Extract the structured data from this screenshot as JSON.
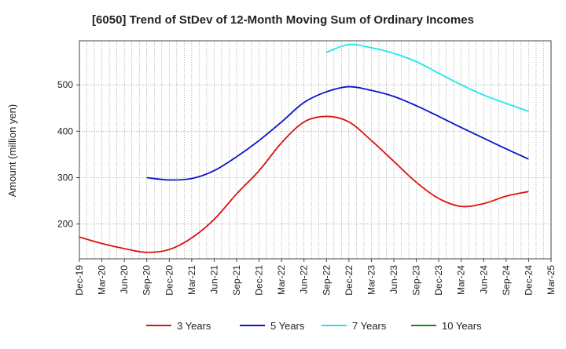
{
  "chart_data": {
    "type": "line",
    "title": "[6050]  Trend of StDev of 12-Month Moving Sum of Ordinary Incomes",
    "xlabel": "",
    "ylabel": "Amount (million yen)",
    "ylim": [
      125,
      595
    ],
    "yticks": [
      200,
      300,
      400,
      500
    ],
    "categories": [
      "Dec-19",
      "Mar-20",
      "Jun-20",
      "Sep-20",
      "Dec-20",
      "Mar-21",
      "Jun-21",
      "Sep-21",
      "Dec-21",
      "Mar-22",
      "Jun-22",
      "Sep-22",
      "Dec-22",
      "Mar-23",
      "Jun-23",
      "Sep-23",
      "Dec-23",
      "Mar-24",
      "Jun-24",
      "Sep-24",
      "Dec-24",
      "Mar-25"
    ],
    "grid": true,
    "legend_position": "bottom",
    "series": [
      {
        "name": "3 Years",
        "color": "#dd1111",
        "values": [
          172,
          158,
          147,
          139,
          145,
          170,
          210,
          265,
          315,
          375,
          420,
          432,
          420,
          380,
          335,
          290,
          255,
          238,
          244,
          260,
          270,
          null
        ]
      },
      {
        "name": "5 Years",
        "color": "#0a14c8",
        "values": [
          null,
          null,
          null,
          300,
          295,
          298,
          315,
          345,
          380,
          420,
          462,
          485,
          496,
          488,
          475,
          455,
          432,
          408,
          385,
          362,
          340,
          null
        ]
      },
      {
        "name": "7 Years",
        "color": "#22e6ee",
        "values": [
          null,
          null,
          null,
          null,
          null,
          null,
          null,
          null,
          null,
          null,
          null,
          570,
          587,
          580,
          568,
          550,
          525,
          500,
          478,
          460,
          443,
          null
        ]
      },
      {
        "name": "10 Years",
        "color": "#1a8a1a",
        "values": [
          null,
          null,
          null,
          null,
          null,
          null,
          null,
          null,
          null,
          null,
          null,
          null,
          null,
          null,
          null,
          null,
          null,
          null,
          null,
          null,
          null,
          null
        ]
      }
    ]
  }
}
